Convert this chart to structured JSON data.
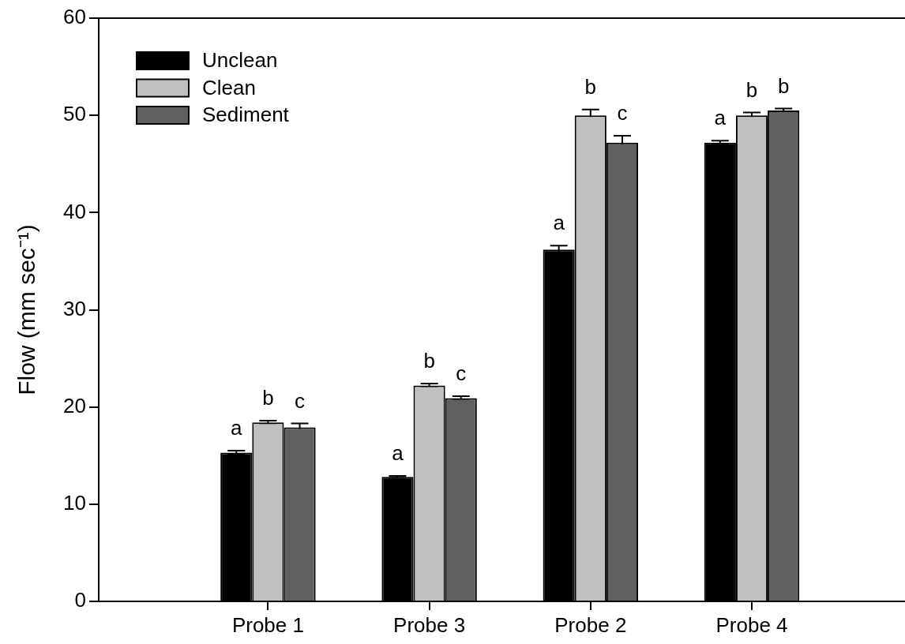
{
  "chart_data": {
    "type": "bar",
    "ylabel": "Flow (mm sec⁻¹)",
    "categories": [
      "Probe 1",
      "Probe 3",
      "Probe 2",
      "Probe 4"
    ],
    "series": [
      {
        "name": "Unclean",
        "color": "#000000",
        "values": [
          15.3,
          12.8,
          36.2,
          47.2
        ],
        "errors": [
          0.2,
          0.1,
          0.4,
          0.2
        ],
        "value_labels": [
          "a",
          "a",
          "a",
          "a"
        ]
      },
      {
        "name": "Clean",
        "color": "#c0c0c0",
        "values": [
          18.4,
          22.2,
          50.0,
          50.0
        ],
        "errors": [
          0.2,
          0.2,
          0.6,
          0.3
        ],
        "value_labels": [
          "b",
          "b",
          "b",
          "b"
        ]
      },
      {
        "name": "Sediment",
        "color": "#606060",
        "values": [
          17.9,
          20.9,
          47.2,
          50.5
        ],
        "errors": [
          0.4,
          0.2,
          0.7,
          0.2
        ],
        "value_labels": [
          "c",
          "c",
          "c",
          "b"
        ]
      }
    ],
    "ylim": [
      0,
      60
    ],
    "yticks": [
      0,
      10,
      20,
      30,
      40,
      50,
      60
    ],
    "legend": "top left"
  }
}
